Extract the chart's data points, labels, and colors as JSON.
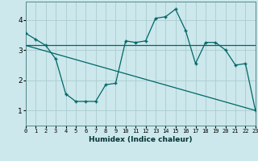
{
  "xlabel": "Humidex (Indice chaleur)",
  "bg_color": "#cce8ec",
  "grid_color": "#aaccd0",
  "line_color": "#006666",
  "line1_x": [
    0,
    1,
    2,
    3,
    4,
    5,
    6,
    7,
    8,
    9,
    10,
    11,
    12,
    13,
    14,
    15,
    16,
    17,
    18,
    19,
    20,
    21,
    22,
    23
  ],
  "line1_y": [
    3.55,
    3.35,
    3.15,
    2.7,
    1.55,
    1.3,
    1.3,
    1.3,
    1.85,
    1.9,
    3.3,
    3.25,
    3.3,
    4.05,
    4.1,
    4.35,
    3.65,
    2.55,
    3.25,
    3.25,
    3.0,
    2.5,
    2.55,
    1.0
  ],
  "line2_x": [
    0,
    23
  ],
  "line2_y": [
    3.15,
    3.15
  ],
  "line3_x": [
    0,
    23
  ],
  "line3_y": [
    3.15,
    1.0
  ],
  "xlim": [
    0,
    23
  ],
  "ylim": [
    0.5,
    4.6
  ],
  "yticks": [
    1,
    2,
    3,
    4
  ],
  "xticks": [
    0,
    1,
    2,
    3,
    4,
    5,
    6,
    7,
    8,
    9,
    10,
    11,
    12,
    13,
    14,
    15,
    16,
    17,
    18,
    19,
    20,
    21,
    22,
    23
  ]
}
